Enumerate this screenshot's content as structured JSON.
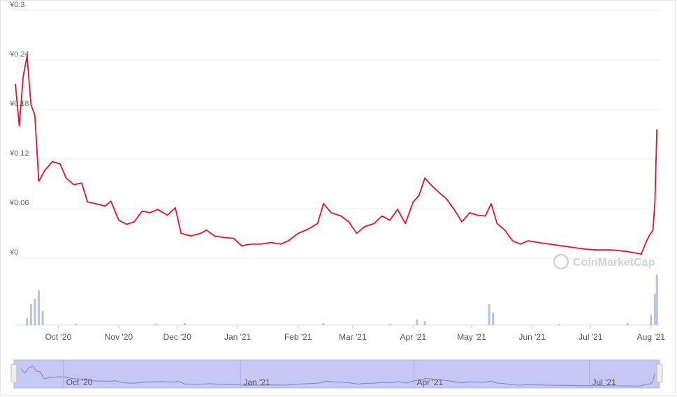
{
  "chart_data": {
    "type": "line",
    "x": [
      "2020-09-09",
      "2020-09-11",
      "2020-09-13",
      "2020-09-15",
      "2020-09-17",
      "2020-09-19",
      "2020-09-21",
      "2020-09-24",
      "2020-09-28",
      "2020-10-02",
      "2020-10-05",
      "2020-10-09",
      "2020-10-13",
      "2020-10-16",
      "2020-10-20",
      "2020-10-25",
      "2020-10-28",
      "2020-11-01",
      "2020-11-05",
      "2020-11-09",
      "2020-11-13",
      "2020-11-17",
      "2020-11-21",
      "2020-11-26",
      "2020-11-30",
      "2020-12-03",
      "2020-12-08",
      "2020-12-13",
      "2020-12-16",
      "2020-12-20",
      "2020-12-25",
      "2020-12-30",
      "2021-01-03",
      "2021-01-08",
      "2021-01-13",
      "2021-01-18",
      "2021-01-23",
      "2021-01-27",
      "2021-02-01",
      "2021-02-06",
      "2021-02-11",
      "2021-02-14",
      "2021-02-18",
      "2021-02-23",
      "2021-02-27",
      "2021-03-03",
      "2021-03-07",
      "2021-03-12",
      "2021-03-16",
      "2021-03-20",
      "2021-03-24",
      "2021-03-28",
      "2021-04-01",
      "2021-04-04",
      "2021-04-07",
      "2021-04-10",
      "2021-04-14",
      "2021-04-18",
      "2021-04-22",
      "2021-04-26",
      "2021-04-30",
      "2021-05-04",
      "2021-05-08",
      "2021-05-11",
      "2021-05-14",
      "2021-05-18",
      "2021-05-22",
      "2021-05-26",
      "2021-05-30",
      "2021-06-04",
      "2021-06-10",
      "2021-06-16",
      "2021-06-22",
      "2021-06-28",
      "2021-07-04",
      "2021-07-12",
      "2021-07-20",
      "2021-07-27",
      "2021-07-29",
      "2021-07-31",
      "2021-08-02",
      "2021-08-03",
      "2021-08-04"
    ],
    "series": [
      {
        "color": "#e8132a",
        "values": [
          0.211,
          0.16,
          0.22,
          0.245,
          0.186,
          0.173,
          0.093,
          0.106,
          0.117,
          0.114,
          0.097,
          0.089,
          0.091,
          0.068,
          0.066,
          0.063,
          0.069,
          0.046,
          0.041,
          0.044,
          0.057,
          0.055,
          0.059,
          0.052,
          0.061,
          0.03,
          0.027,
          0.03,
          0.034,
          0.027,
          0.025,
          0.024,
          0.015,
          0.017,
          0.017,
          0.019,
          0.017,
          0.021,
          0.03,
          0.035,
          0.042,
          0.066,
          0.055,
          0.051,
          0.044,
          0.03,
          0.038,
          0.042,
          0.051,
          0.046,
          0.059,
          0.042,
          0.068,
          0.076,
          0.097,
          0.089,
          0.08,
          0.072,
          0.059,
          0.044,
          0.055,
          0.052,
          0.051,
          0.066,
          0.042,
          0.034,
          0.021,
          0.017,
          0.021,
          0.019,
          0.017,
          0.015,
          0.013,
          0.011,
          0.01,
          0.01,
          0.008,
          0.005,
          0.017,
          0.027,
          0.034,
          0.068,
          0.156
        ]
      }
    ],
    "volume": {
      "color": "#b9c3dc",
      "x": [
        "2020-09-15",
        "2020-09-17",
        "2020-09-19",
        "2020-09-21",
        "2020-09-23",
        "2020-10-10",
        "2020-11-20",
        "2020-12-05",
        "2021-02-14",
        "2021-03-20",
        "2021-04-03",
        "2021-04-07",
        "2021-05-10",
        "2021-05-12",
        "2021-06-15",
        "2021-07-20",
        "2021-08-01",
        "2021-08-03",
        "2021-08-04"
      ],
      "values": [
        10,
        30,
        38,
        50,
        20,
        2,
        2,
        3,
        3,
        2,
        8,
        6,
        30,
        18,
        2,
        3,
        15,
        45,
        72
      ]
    },
    "ylim": [
      0,
      0.3
    ],
    "yticks": [
      {
        "value": 0,
        "label": "¥0"
      },
      {
        "value": 0.06,
        "label": "¥0.06"
      },
      {
        "value": 0.12,
        "label": "¥0.12"
      },
      {
        "value": 0.18,
        "label": "¥0.18"
      },
      {
        "value": 0.24,
        "label": "¥0.24"
      },
      {
        "value": 0.3,
        "label": "¥0.3"
      }
    ],
    "xlim": [
      "2020-09-09",
      "2021-08-05"
    ],
    "xticks": [
      {
        "value": "2020-10-01",
        "label": "Oct '20"
      },
      {
        "value": "2020-11-01",
        "label": "Nov '20"
      },
      {
        "value": "2020-12-01",
        "label": "Dec '20"
      },
      {
        "value": "2021-01-01",
        "label": "Jan '21"
      },
      {
        "value": "2021-02-01",
        "label": "Feb '21"
      },
      {
        "value": "2021-03-01",
        "label": "Mar '21"
      },
      {
        "value": "2021-04-01",
        "label": "Apr '21"
      },
      {
        "value": "2021-05-01",
        "label": "May '21"
      },
      {
        "value": "2021-06-01",
        "label": "Jun '21"
      },
      {
        "value": "2021-07-01",
        "label": "Jul '21"
      },
      {
        "value": "2021-08-01",
        "label": "Aug '21"
      }
    ],
    "grid": true,
    "watermark": "CoinMarketCap"
  }
}
